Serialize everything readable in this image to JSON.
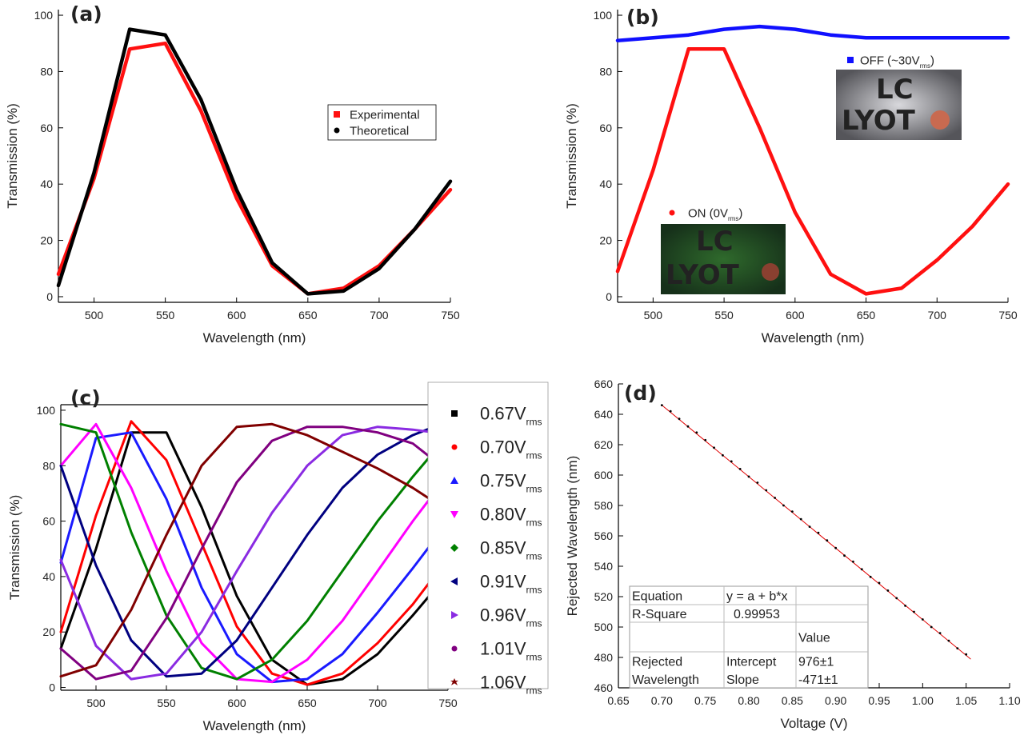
{
  "chart_data": [
    {
      "type": "line",
      "title": "(a)",
      "x_label": "Wavelength (nm)",
      "y_label": "Transmission (%)",
      "x": [
        475,
        500,
        525,
        550,
        575,
        600,
        625,
        650,
        675,
        700,
        725,
        750
      ],
      "series": [
        {
          "name": "Experimental",
          "color": "#ff1010",
          "values": [
            8,
            42,
            88,
            90,
            66,
            35,
            11,
            1,
            3,
            11,
            24,
            38
          ]
        },
        {
          "name": "Theoretical",
          "color": "#000000",
          "values": [
            4,
            44,
            95,
            93,
            70,
            38,
            12,
            1,
            2,
            10,
            24,
            41
          ]
        }
      ],
      "xlim": [
        475,
        750
      ],
      "xticks": [
        500,
        550,
        600,
        650,
        700,
        750
      ],
      "ylim": [
        -2,
        102
      ],
      "yticks": [
        0,
        20,
        40,
        60,
        80,
        100
      ]
    },
    {
      "type": "line",
      "title": "(b)",
      "x_label": "Wavelength (nm)",
      "y_label": "Transmission (%)",
      "x": [
        475,
        500,
        525,
        550,
        575,
        600,
        625,
        650,
        675,
        700,
        725,
        750
      ],
      "series": [
        {
          "name": "OFF (~30V",
          "name_sub": "rms",
          "name_tail": ")",
          "color": "#1010ff",
          "values": [
            91,
            92,
            93,
            95,
            96,
            95,
            93,
            92,
            92,
            92,
            92,
            92
          ]
        },
        {
          "name": "ON (0V",
          "name_sub": "rms",
          "name_tail": ")",
          "color": "#ff1010",
          "values": [
            9,
            45,
            88,
            88,
            60,
            30,
            8,
            1,
            3,
            13,
            25,
            40
          ]
        }
      ],
      "insets": [
        {
          "lines": [
            "LC",
            "LYOT"
          ]
        },
        {
          "lines": [
            "LC",
            "LYOT"
          ]
        }
      ],
      "xlim": [
        475,
        750
      ],
      "xticks": [
        500,
        550,
        600,
        650,
        700,
        750
      ],
      "ylim": [
        -2,
        102
      ],
      "yticks": [
        0,
        20,
        40,
        60,
        80,
        100
      ]
    },
    {
      "type": "line",
      "title": "(c)",
      "x_label": "Wavelength (nm)",
      "y_label": "Transmission (%)",
      "x": [
        475,
        500,
        525,
        550,
        575,
        600,
        625,
        650,
        675,
        700,
        725,
        740
      ],
      "series": [
        {
          "name": "0.67V",
          "name_sub": "rms",
          "color": "#000000",
          "values": [
            14,
            50,
            92,
            92,
            65,
            33,
            10,
            1,
            3,
            12,
            26,
            35
          ]
        },
        {
          "name": "0.70V",
          "name_sub": "rms",
          "color": "#ff0000",
          "values": [
            20,
            62,
            96,
            82,
            52,
            22,
            5,
            1,
            5,
            16,
            30,
            40
          ]
        },
        {
          "name": "0.75V",
          "name_sub": "rms",
          "color": "#1a1aff",
          "values": [
            45,
            90,
            92,
            68,
            36,
            12,
            2,
            3,
            12,
            27,
            43,
            53
          ]
        },
        {
          "name": "0.80V",
          "name_sub": "rms",
          "color": "#ff00ff",
          "values": [
            80,
            95,
            72,
            42,
            16,
            3,
            2,
            10,
            24,
            42,
            60,
            70
          ]
        },
        {
          "name": "0.85V",
          "name_sub": "rms",
          "color": "#008000",
          "values": [
            95,
            92,
            56,
            26,
            7,
            3,
            10,
            24,
            42,
            60,
            76,
            85
          ]
        },
        {
          "name": "0.91V",
          "name_sub": "rms",
          "color": "#000080",
          "values": [
            80,
            44,
            17,
            4,
            5,
            17,
            36,
            55,
            72,
            84,
            91,
            94
          ]
        },
        {
          "name": "0.96V",
          "name_sub": "rms",
          "color": "#8a2be2",
          "values": [
            46,
            15,
            3,
            5,
            20,
            42,
            63,
            80,
            91,
            94,
            93,
            92
          ]
        },
        {
          "name": "1.01V",
          "name_sub": "rms",
          "color": "#800080",
          "values": [
            14,
            3,
            6,
            25,
            50,
            74,
            89,
            94,
            94,
            92,
            88,
            82
          ]
        },
        {
          "name": "1.06V",
          "name_sub": "rms",
          "color": "#800000",
          "values": [
            4,
            8,
            28,
            55,
            80,
            94,
            95,
            91,
            85,
            79,
            72,
            67
          ]
        }
      ],
      "xlim": [
        475,
        750
      ],
      "xticks": [
        500,
        550,
        600,
        650,
        700,
        750
      ],
      "ylim": [
        -1,
        102
      ],
      "yticks": [
        0,
        20,
        40,
        60,
        80,
        100
      ]
    },
    {
      "type": "scatter",
      "title": "(d)",
      "x_label": "Voltage (V)",
      "y_label": "Rejected Wavelength (nm)",
      "x": [
        0.7,
        0.71,
        0.72,
        0.73,
        0.74,
        0.75,
        0.76,
        0.77,
        0.78,
        0.79,
        0.8,
        0.81,
        0.82,
        0.83,
        0.84,
        0.85,
        0.86,
        0.87,
        0.88,
        0.89,
        0.9,
        0.91,
        0.92,
        0.93,
        0.94,
        0.95,
        0.96,
        0.97,
        0.98,
        0.99,
        1.0,
        1.01,
        1.02,
        1.03,
        1.04,
        1.05
      ],
      "values": [
        646,
        642,
        637,
        632,
        628,
        623,
        618,
        613,
        609,
        604,
        599,
        595,
        590,
        585,
        580,
        576,
        571,
        566,
        562,
        557,
        552,
        547,
        543,
        538,
        533,
        529,
        524,
        519,
        514,
        510,
        505,
        500,
        496,
        491,
        486,
        482
      ],
      "color": "#000000",
      "fit_line": {
        "color": "#e00000",
        "x": [
          0.7,
          1.055
        ],
        "values": [
          646,
          479
        ]
      },
      "table": {
        "rows": [
          [
            "Equation",
            "y = a + b*x",
            null
          ],
          [
            "R-Square",
            "0.99953",
            null
          ],
          [
            null,
            null,
            "Value"
          ],
          [
            "Rejected",
            "Intercept",
            "976±1"
          ],
          [
            "Wavelength",
            "Slope",
            "-471±1"
          ]
        ]
      },
      "xlim": [
        0.65,
        1.1
      ],
      "xticks": [
        {
          "value": 0.65,
          "label": "0.65"
        },
        {
          "value": 0.7,
          "label": "0.70"
        },
        {
          "value": 0.75,
          "label": "0.75"
        },
        {
          "value": 0.8,
          "label": "0.80"
        },
        {
          "value": 0.85,
          "label": "0.85"
        },
        {
          "value": 0.9,
          "label": "0.90"
        },
        {
          "value": 0.95,
          "label": "0.95"
        },
        {
          "value": 1,
          "label": "1.00"
        },
        {
          "value": 1.05,
          "label": "1.05"
        },
        {
          "value": 1.1,
          "label": "1.10"
        }
      ],
      "ylim": [
        460,
        660
      ],
      "yticks": [
        460,
        480,
        500,
        520,
        540,
        560,
        580,
        600,
        620,
        640,
        660
      ]
    }
  ]
}
